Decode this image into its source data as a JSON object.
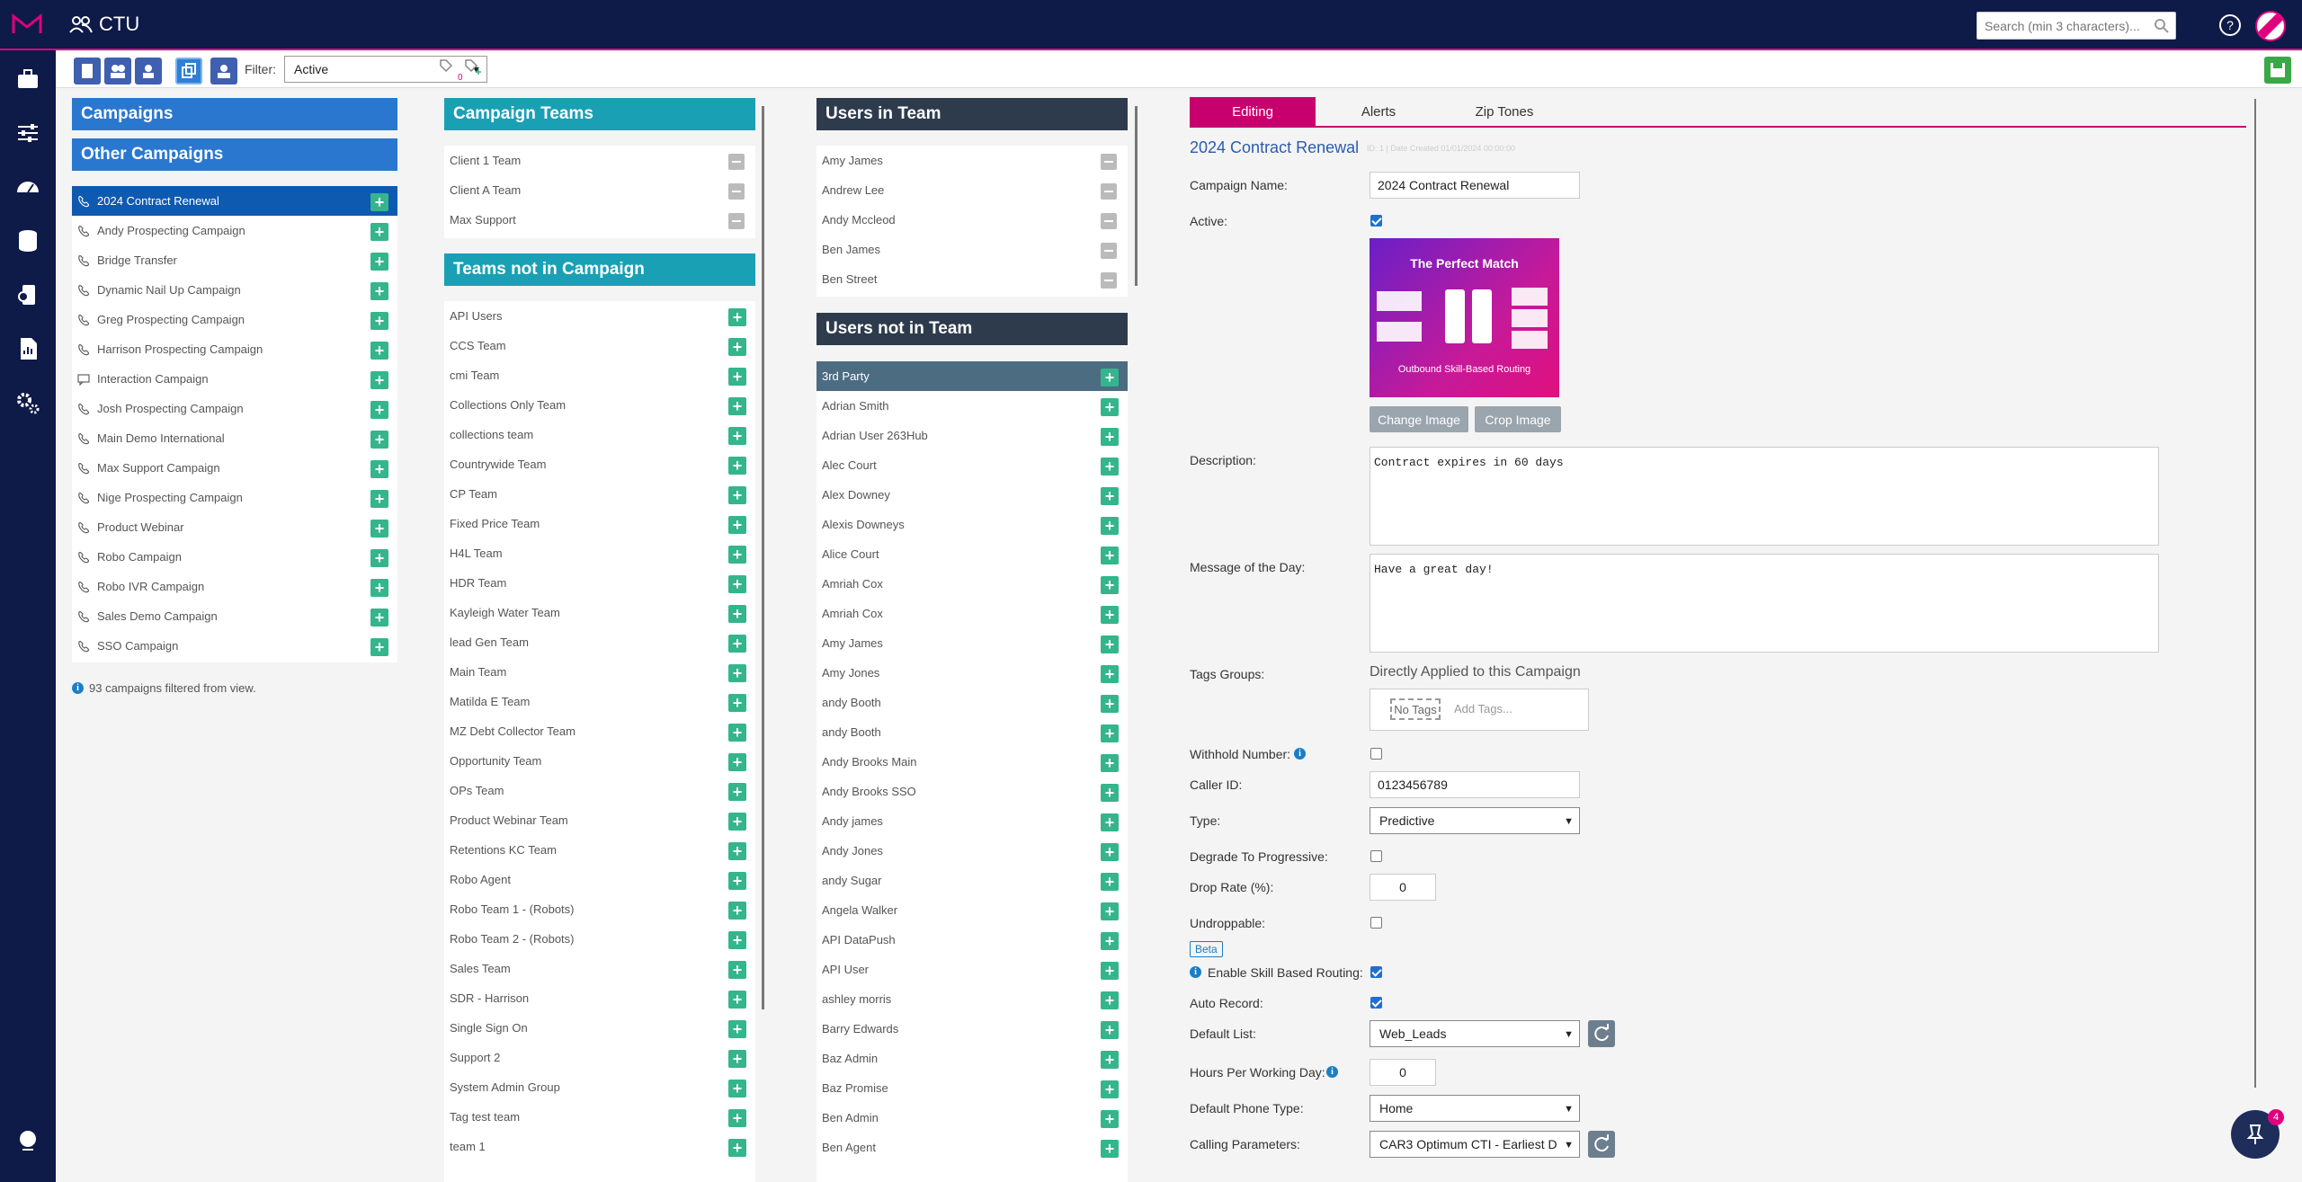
{
  "app": {
    "title": "CTU",
    "search_placeholder": "Search (min 3 characters)..."
  },
  "toolbar": {
    "filter_label": "Filter:",
    "filter_value": "Active",
    "tag_count": "0"
  },
  "campaigns": {
    "header": "Campaigns",
    "other_header": "Other Campaigns",
    "items": [
      "2024 Contract Renewal",
      "Andy Prospecting Campaign",
      "Bridge Transfer",
      "Dynamic Nail Up Campaign",
      "Greg Prospecting Campaign",
      "Harrison Prospecting Campaign",
      "Interaction Campaign",
      "Josh Prospecting Campaign",
      "Main Demo International",
      "Max Support Campaign",
      "Nige Prospecting Campaign",
      "Product Webinar",
      "Robo Campaign",
      "Robo IVR Campaign",
      "Sales Demo Campaign",
      "SSO Campaign"
    ],
    "info": "93 campaigns filtered from view."
  },
  "campaign_teams": {
    "header": "Campaign Teams",
    "items": [
      "Client 1 Team",
      "Client A Team",
      "Max Support"
    ]
  },
  "teams_not": {
    "header": "Teams not in Campaign",
    "items": [
      "API Users",
      "CCS Team",
      "cmi Team",
      "Collections Only Team",
      "collections team",
      "Countrywide Team",
      "CP Team",
      "Fixed Price Team",
      "H4L Team",
      "HDR Team",
      "Kayleigh Water Team",
      "lead Gen Team",
      "Main Team",
      "Matilda E Team",
      "MZ Debt Collector Team",
      "Opportunity Team",
      "OPs Team",
      "Product Webinar Team",
      "Retentions KC Team",
      "Robo Agent",
      "Robo Team 1 - (Robots)",
      "Robo Team 2 - (Robots)",
      "Sales Team",
      "SDR - Harrison",
      "Single Sign On",
      "Support 2",
      "System Admin Group",
      "Tag test team",
      "team 1"
    ]
  },
  "users_in": {
    "header": "Users in Team",
    "items": [
      "Amy James",
      "Andrew Lee",
      "Andy Mccleod",
      "Ben James",
      "Ben Street"
    ]
  },
  "users_not": {
    "header": "Users not in Team",
    "items": [
      "3rd Party",
      "Adrian Smith",
      "Adrian User 263Hub",
      "Alec Court",
      "Alex Downey",
      "Alexis Downeys",
      "Alice Court",
      "Amriah Cox",
      "Amriah Cox",
      "Amy James",
      "Amy Jones",
      "andy Booth",
      "andy Booth",
      "Andy Brooks Main",
      "Andy Brooks SSO",
      "Andy james",
      "Andy Jones",
      "andy Sugar",
      "Angela Walker",
      "API DataPush",
      "API User",
      "ashley morris",
      "Barry Edwards",
      "Baz Admin",
      "Baz Promise",
      "Ben Admin",
      "Ben Agent"
    ]
  },
  "tabs": [
    "Editing",
    "Alerts",
    "Zip Tones"
  ],
  "form": {
    "title": "2024 Contract Renewal",
    "subtitle": "ID: 1 | Date Created 01/01/2024 00:00:00",
    "labels": {
      "name": "Campaign Name:",
      "active": "Active:",
      "description": "Description:",
      "motd": "Message of the Day:",
      "tags": "Tags Groups:",
      "withhold": "Withhold Number:",
      "callerid": "Caller ID:",
      "type": "Type:",
      "degrade": "Degrade To Progressive:",
      "droprate": "Drop Rate (%):",
      "undroppable": "Undroppable:",
      "skill": "Enable Skill Based Routing:",
      "autorecord": "Auto Record:",
      "defaultlist": "Default List:",
      "hours": "Hours Per Working Day:",
      "phonetype": "Default Phone Type:",
      "calling": "Calling Parameters:"
    },
    "values": {
      "name": "2024 Contract Renewal",
      "description": "Contract expires in 60 days",
      "motd": "Have a great day!",
      "tags_heading": "Directly Applied to this Campaign",
      "no_tags": "No Tags",
      "add_tags": "Add Tags...",
      "callerid": "0123456789",
      "type": "Predictive",
      "droprate": "0",
      "beta": "Beta",
      "defaultlist": "Web_Leads",
      "hours": "0",
      "phonetype": "Home",
      "calling": "CAR3 Optimum CTI - Earliest D"
    },
    "buttons": {
      "change_image": "Change Image",
      "crop_image": "Crop Image"
    },
    "banner": {
      "title": "The Perfect Match",
      "caption": "Outbound Skill-Based Routing"
    }
  },
  "fab": {
    "badge": "4"
  },
  "colors": {
    "navy": "#0e1a47",
    "accent": "#c8006e",
    "add_green": "#35b58c",
    "blue_header": "#2a77d0",
    "teal_header": "#19a0b5"
  }
}
